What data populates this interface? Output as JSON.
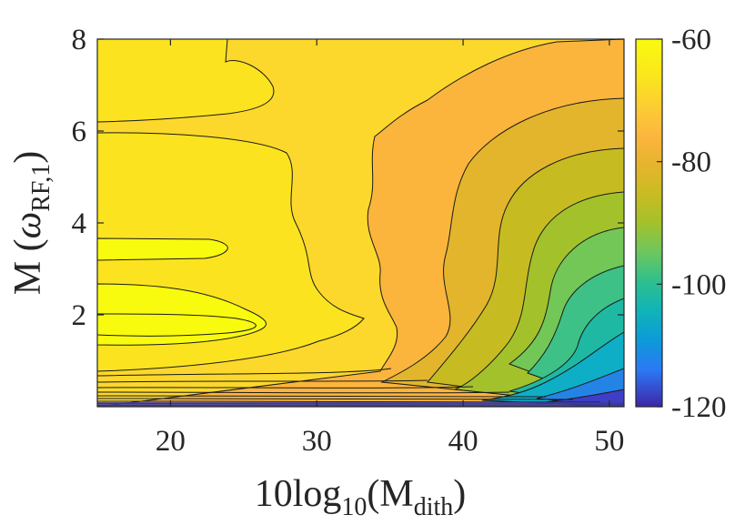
{
  "chart_data": {
    "type": "contour",
    "title": "",
    "xlabel": {
      "prefix": "10log",
      "sub": "10",
      "mid": "(M",
      "sub2": "dith",
      "suffix": ")"
    },
    "ylabel": {
      "prefix": "M (",
      "symbol": "ω",
      "sub": "RF,1",
      "suffix": ")"
    },
    "xlim": [
      15,
      51
    ],
    "ylim": [
      0.1,
      8
    ],
    "x_ticks": [
      "20",
      "30",
      "40",
      "50"
    ],
    "x_tick_values": [
      20,
      30,
      40,
      50
    ],
    "y_ticks": [
      "2",
      "4",
      "6",
      "8"
    ],
    "y_tick_values": [
      2,
      4,
      6,
      8
    ],
    "colorbar": {
      "range": [
        -120,
        -60
      ],
      "ticks": [
        "-60",
        "-80",
        "-100",
        "-120"
      ],
      "tick_values": [
        -60,
        -80,
        -100,
        -120
      ],
      "colormap": "parula"
    },
    "contour_levels": [
      -60,
      -62,
      -64,
      -66,
      -68,
      -70,
      -72,
      -74,
      -76,
      -78,
      -80,
      -82,
      -84,
      -86,
      -88,
      -90,
      -92,
      -94,
      -96,
      -98,
      -100
    ],
    "regions_note": "maximum (~-61) near x 15-26, y 1.5-2.2 and x 15-24, y 3.2-3.6; minimum (~-120) near y 0.1 at high x",
    "colors": {
      "axis": "#262626",
      "contour_line": "#1a1a1a"
    }
  }
}
